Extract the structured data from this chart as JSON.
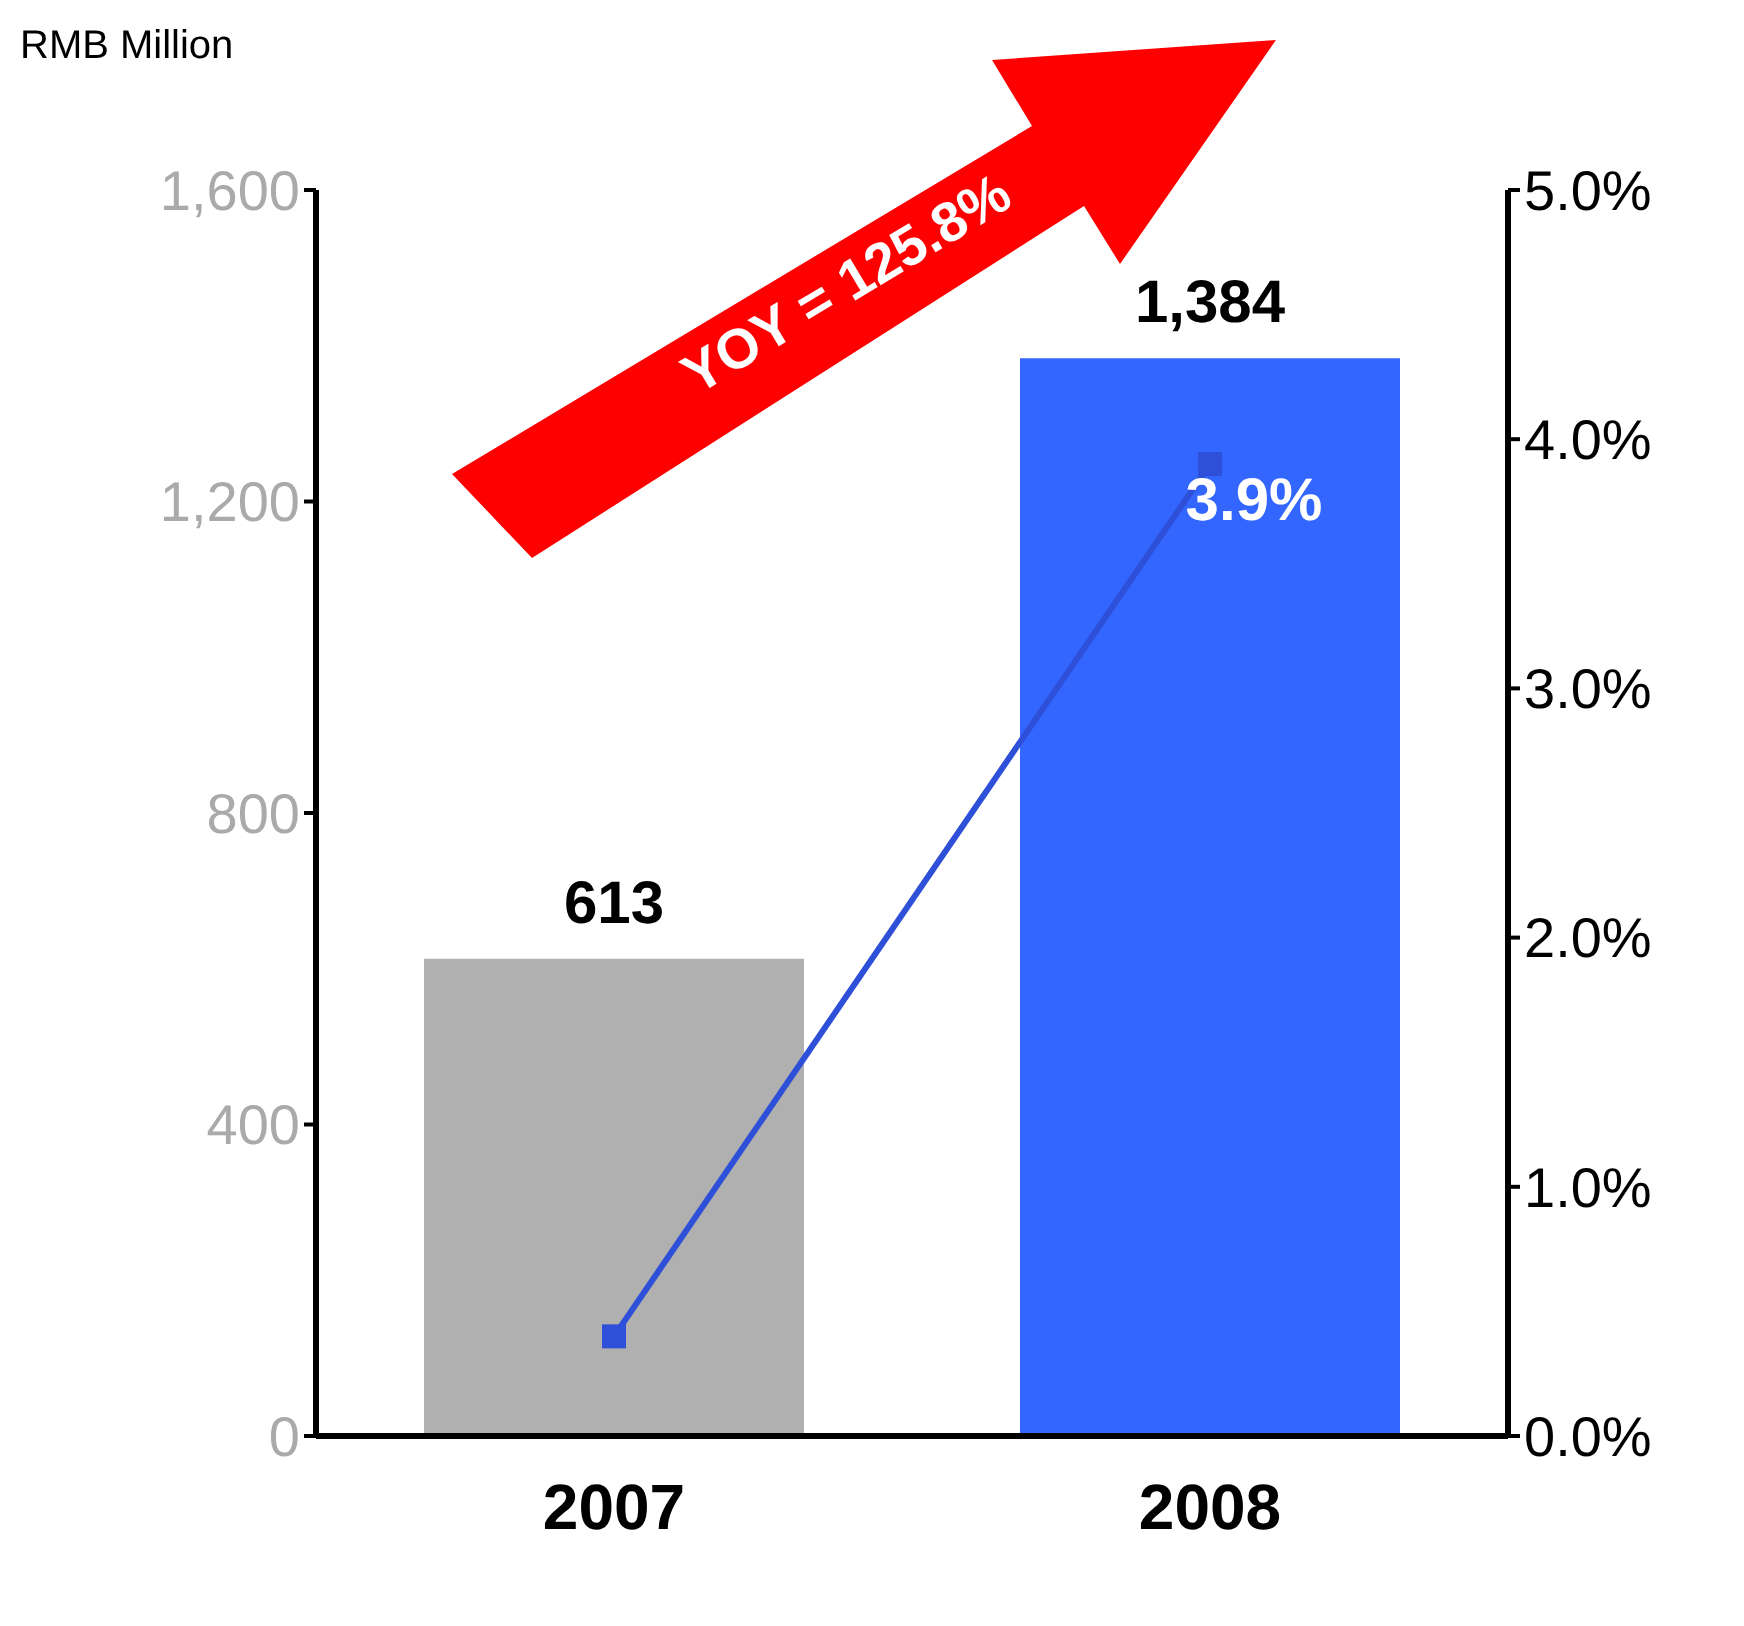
{
  "chart_data": {
    "type": "bar",
    "ylabel": "RMB Million",
    "categories": [
      "2007",
      "2008"
    ],
    "series": [
      {
        "colors": [
          "#b0b0b0",
          "#3366ff"
        ],
        "values": [
          613,
          1384
        ],
        "value_labels": [
          "613",
          "1,384"
        ]
      },
      {
        "type": "line",
        "axis": "y2",
        "color": "#2e50d8",
        "values": [
          0.4,
          3.9
        ],
        "value_labels": [
          null,
          "3.9%"
        ]
      }
    ],
    "ylim": [
      0,
      1600
    ],
    "yticks": [
      0,
      400,
      800,
      {
        "value": 1200,
        "label": "1,200"
      },
      {
        "value": 1600,
        "label": "1,600"
      }
    ],
    "y2lim": [
      0,
      5
    ],
    "y2ticks": [
      {
        "value": 0,
        "label": "0.0%"
      },
      {
        "value": 1,
        "label": "1.0%"
      },
      {
        "value": 2,
        "label": "2.0%"
      },
      {
        "value": 3,
        "label": "3.0%"
      },
      {
        "value": 4,
        "label": "4.0%"
      },
      {
        "value": 5,
        "label": "5.0%"
      }
    ],
    "annotations": [
      "YOY = 125.8%"
    ],
    "marker": "square",
    "grid": false,
    "legend": false
  }
}
